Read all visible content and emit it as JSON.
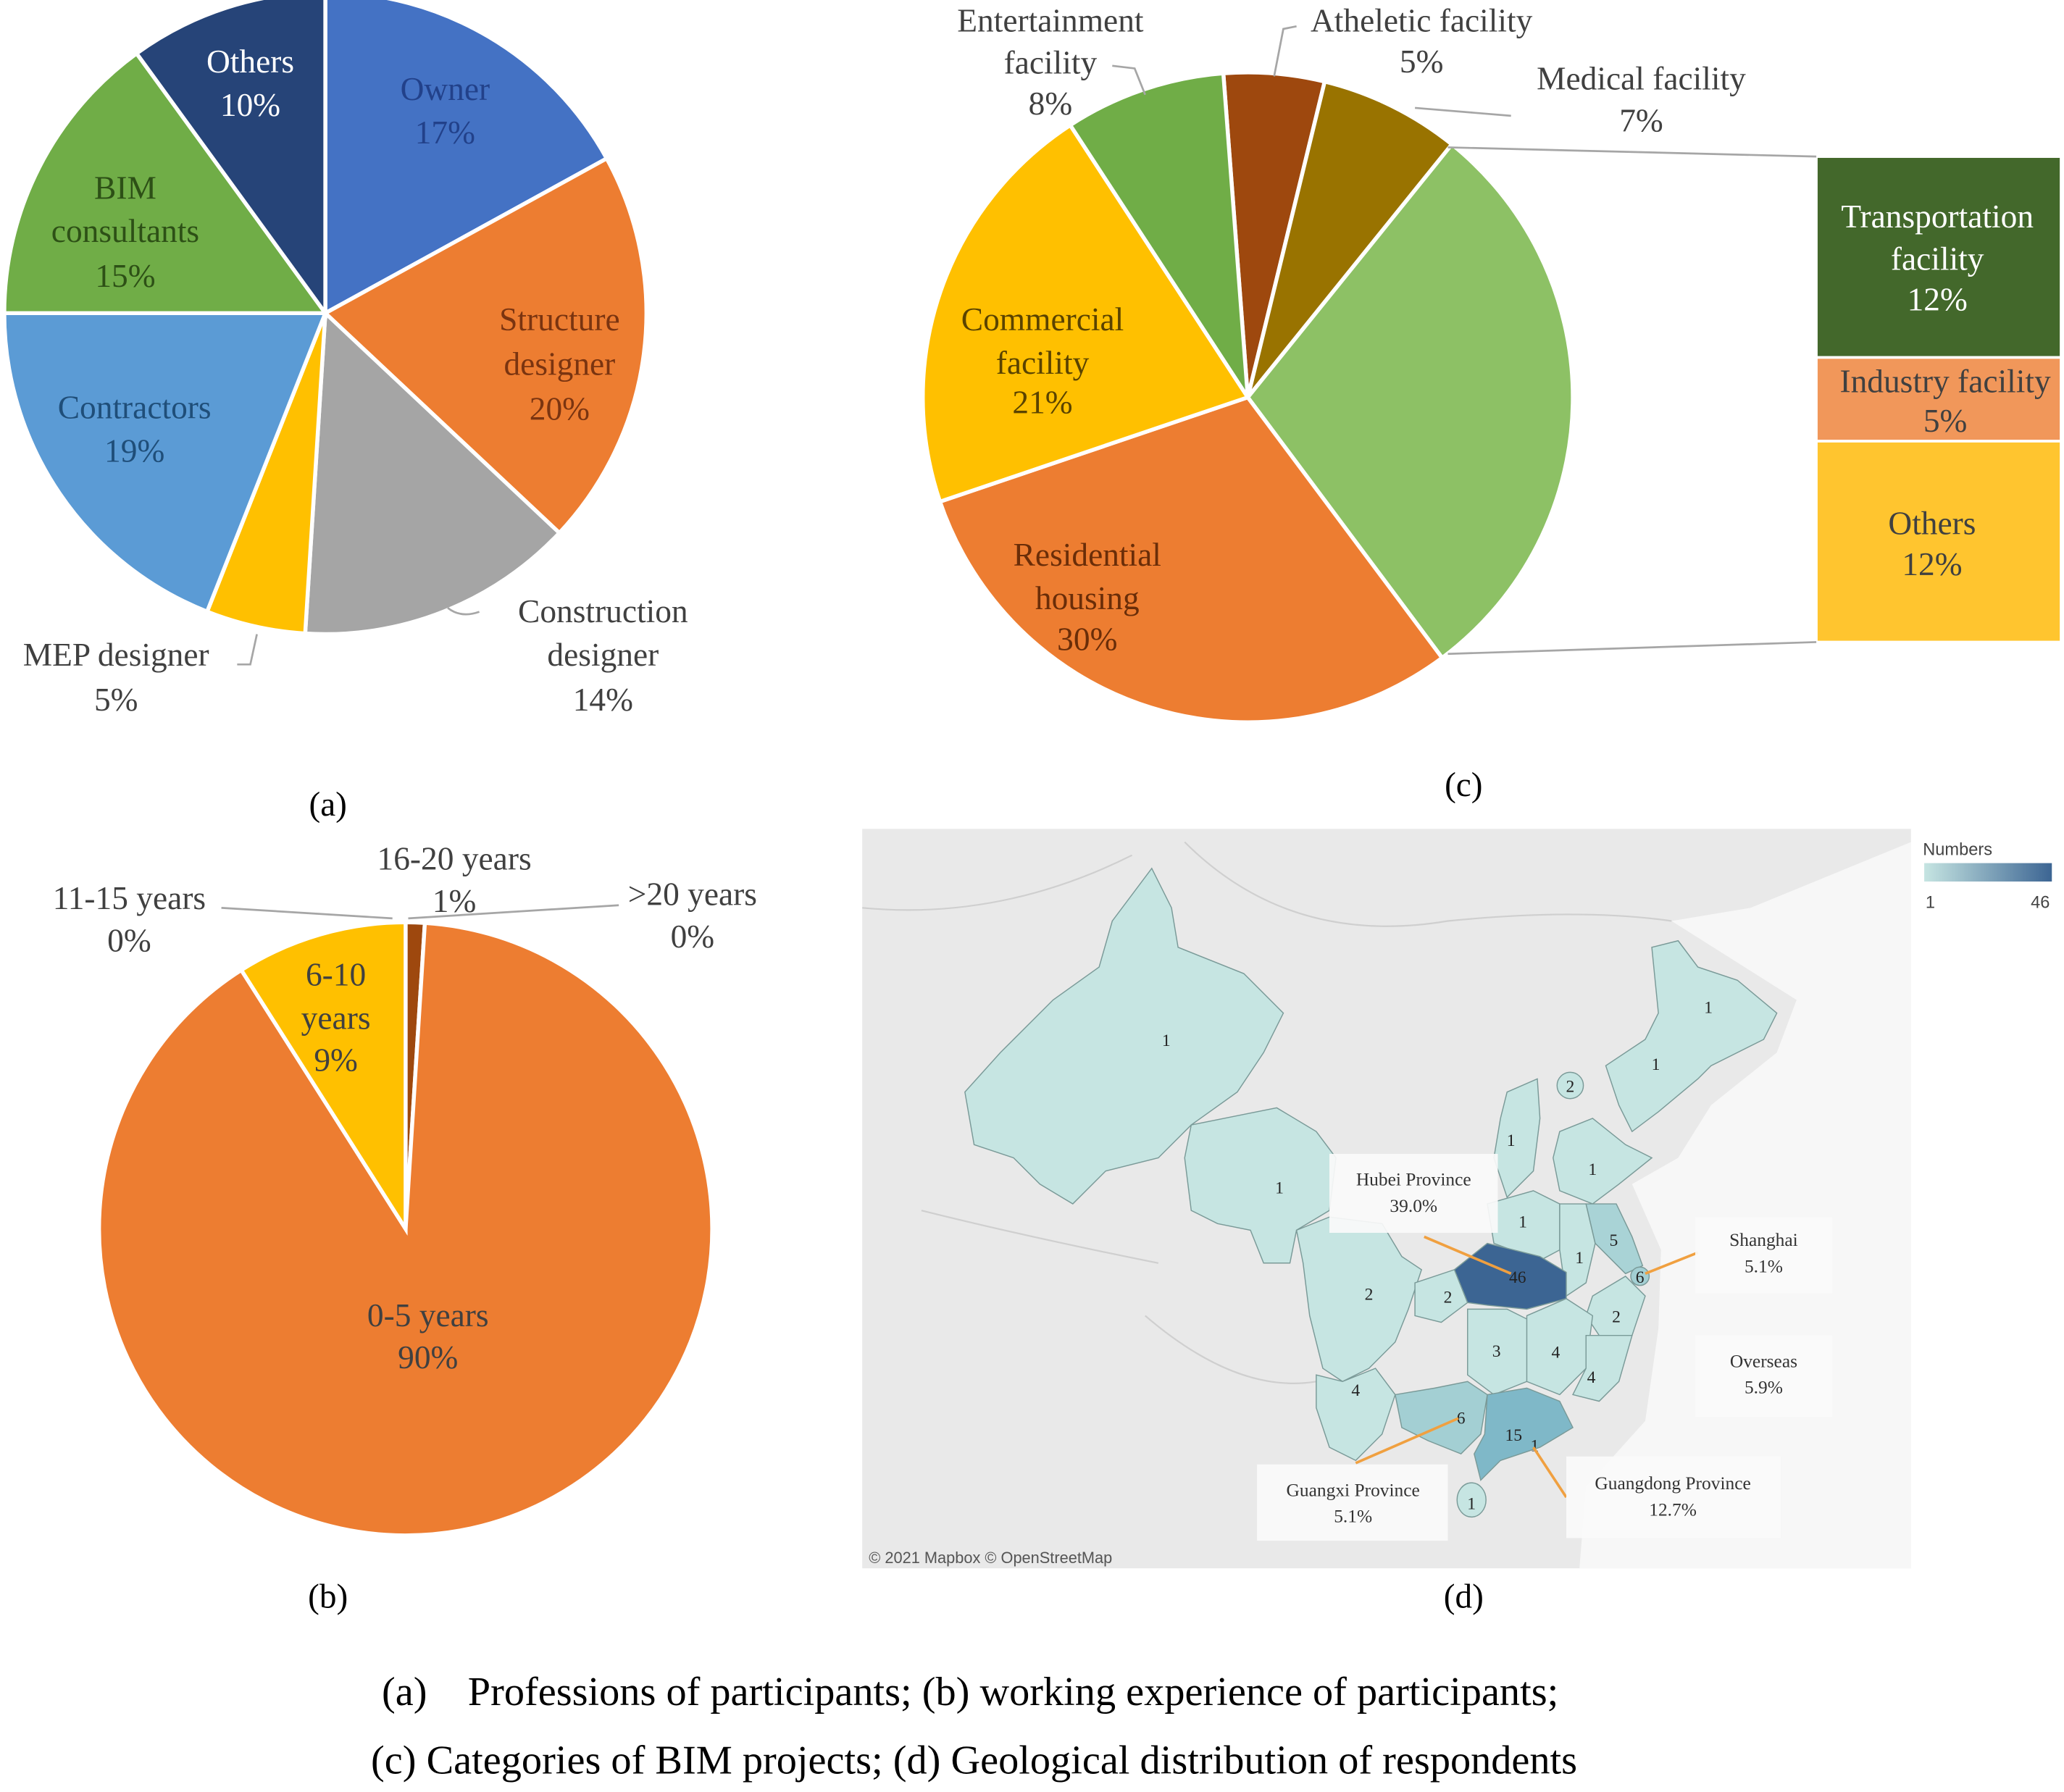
{
  "chart_data": [
    {
      "id": "a",
      "type": "pie",
      "title": "Professions of participants",
      "start_percent": 0,
      "slices": [
        {
          "label": "Owner",
          "label_lines": [
            "Owner"
          ],
          "value": 17,
          "pct": "17%",
          "color": "#4472C4"
        },
        {
          "label": "Structure designer",
          "label_lines": [
            "Structure",
            "designer"
          ],
          "value": 20,
          "pct": "20%",
          "color": "#ED7D31"
        },
        {
          "label": "Construction designer",
          "label_lines": [
            "Construction",
            "designer"
          ],
          "value": 14,
          "pct": "14%",
          "color": "#A5A5A5"
        },
        {
          "label": "MEP designer",
          "label_lines": [
            "MEP designer"
          ],
          "value": 5,
          "pct": "5%",
          "color": "#FFC000"
        },
        {
          "label": "Contractors",
          "label_lines": [
            "Contractors"
          ],
          "value": 19,
          "pct": "19%",
          "color": "#5B9BD5"
        },
        {
          "label": "BIM consultants",
          "label_lines": [
            "BIM",
            "consultants"
          ],
          "value": 15,
          "pct": "15%",
          "color": "#70AD47"
        },
        {
          "label": "Others",
          "label_lines": [
            "Others"
          ],
          "value": 10,
          "pct": "10%",
          "color": "#264478"
        }
      ]
    },
    {
      "id": "b",
      "type": "pie",
      "title": "Working experience of participants",
      "start_percent": 0,
      "slices": [
        {
          "label": "16-20 years",
          "label_lines": [
            "16-20 years"
          ],
          "value": 1,
          "pct": "1%",
          "color": "#9E480E"
        },
        {
          "label": ">20 years",
          "label_lines": [
            ">20 years"
          ],
          "value": 0,
          "pct": "0%",
          "color": "#997300"
        },
        {
          "label": "0-5 years",
          "label_lines": [
            "0-5 years"
          ],
          "value": 90,
          "pct": "90%",
          "color": "#ED7D31"
        },
        {
          "label": "6-10 years",
          "label_lines": [
            "6-10",
            "years"
          ],
          "value": 9,
          "pct": "9%",
          "color": "#FFC000"
        },
        {
          "label": "11-15 years",
          "label_lines": [
            "11-15 years"
          ],
          "value": 0,
          "pct": "0%",
          "color": "#5B9BD5"
        }
      ]
    },
    {
      "id": "c",
      "type": "bar-of-pie",
      "title": "Categories of BIM projects",
      "start_percent": -1.2,
      "slices": [
        {
          "label": "Atheletic facility",
          "label_lines": [
            "Atheletic facility"
          ],
          "value": 5,
          "pct": "5%",
          "color": "#9E480E"
        },
        {
          "label": "Medical facility",
          "label_lines": [
            "Medical facility"
          ],
          "value": 7,
          "pct": "7%",
          "color": "#997300"
        },
        {
          "label": "Other (split)",
          "value": 29,
          "color": "#8DC165"
        },
        {
          "label": "Residential housing",
          "label_lines": [
            "Residential",
            "housing"
          ],
          "value": 30,
          "pct": "30%",
          "color": "#ED7D31"
        },
        {
          "label": "Commercial facility",
          "label_lines": [
            "Commercial",
            "facility"
          ],
          "value": 21,
          "pct": "21%",
          "color": "#FFC000"
        },
        {
          "label": "Entertainment facility",
          "label_lines": [
            "Entertainment",
            "facility"
          ],
          "value": 8,
          "pct": "8%",
          "color": "#70AD47"
        }
      ],
      "bar": [
        {
          "label": "Transportation facility",
          "label_lines": [
            "Transportation",
            "facility"
          ],
          "value": 12,
          "pct": "12%",
          "color": "#43682B"
        },
        {
          "label": "Industry facility",
          "label_lines": [
            "Industry facility"
          ],
          "value": 5,
          "pct": "5%",
          "color": "#F1975A"
        },
        {
          "label": "Others",
          "label_lines": [
            "Others"
          ],
          "value": 12,
          "pct": "12%",
          "color": "#FFC52F"
        }
      ]
    }
  ],
  "map": {
    "legend_title": "Numbers",
    "legend_min": "1",
    "legend_max": "46",
    "color_low": "#C6E5E2",
    "color_high": "#3C6593",
    "counts": [
      "1",
      "1",
      "1",
      "1",
      "2",
      "1",
      "1",
      "1",
      "1",
      "5",
      "6",
      "46",
      "2",
      "2",
      "2",
      "3",
      "4",
      "4",
      "4",
      "6",
      "15",
      "1",
      "1"
    ],
    "callouts": {
      "hubei": {
        "name": "Hubei Province",
        "pct": "39.0%"
      },
      "shanghai": {
        "name": "Shanghai",
        "pct": "5.1%"
      },
      "overseas": {
        "name": "Overseas",
        "pct": "5.9%"
      },
      "guangxi": {
        "name": "Guangxi Province",
        "pct": "5.1%"
      },
      "guangdong": {
        "name": "Guangdong Province",
        "pct": "12.7%"
      }
    },
    "attribution": "© 2021 Mapbox © OpenStreetMap"
  },
  "subcaptions": {
    "a": "(a)",
    "b": "(b)",
    "c": "(c)",
    "d": "(d)"
  },
  "caption": {
    "line1": "(a)    Professions of participants; (b) working experience of participants;",
    "line2": "(c) Categories of BIM projects; (d)  Geological distribution of respondents"
  }
}
